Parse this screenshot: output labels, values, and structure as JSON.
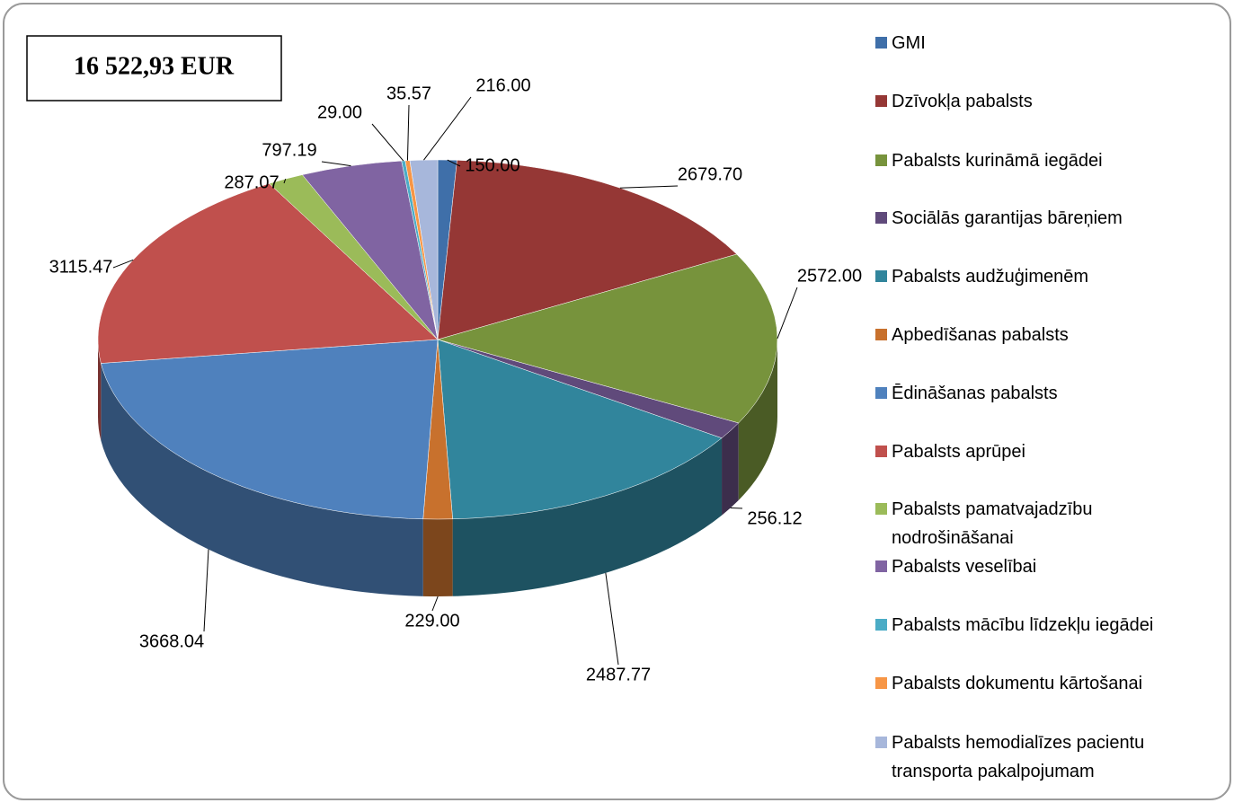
{
  "chart_data": {
    "type": "pie",
    "title": "16 522,93 EUR",
    "categories": [
      "GMI",
      "Dzīvokļa pabalsts",
      "Pabalsts kurināmā iegādei",
      "Sociālās garantijas bāreņiem",
      "Pabalsts audžuģimenēm",
      "Apbedīšanas pabalsts",
      "Ēdināšanas pabalsts",
      "Pabalsts aprūpei",
      "Pabalsts pamatvajadzību nodrošināšanai",
      "Pabalsts veselībai",
      "Pabalsts mācību līdzekļu iegādei",
      "Pabalsts dokumentu kārtošanai",
      "Pabalsts hemodialīzes pacientu transporta pakalpojumam"
    ],
    "values": [
      150,
      2679.7,
      2572,
      256.12,
      2487.77,
      229,
      3668.04,
      3115.47,
      287.07,
      797.19,
      29,
      35.57,
      216
    ],
    "value_labels": [
      "150.00",
      "2679.70",
      "2572.00",
      "256.12",
      "2487.77",
      "229.00",
      "3668.04",
      "3115.47",
      "287.07",
      "797.19",
      "29.00",
      "35.57",
      "216.00"
    ],
    "colors": [
      "#3f6fa9",
      "#953735",
      "#77933c",
      "#604a7b",
      "#31859c",
      "#c8712d",
      "#4f81bd",
      "#c0504d",
      "#9bbb59",
      "#8064a2",
      "#4bacc6",
      "#f79646",
      "#a7b7db"
    ],
    "legend": "right"
  }
}
